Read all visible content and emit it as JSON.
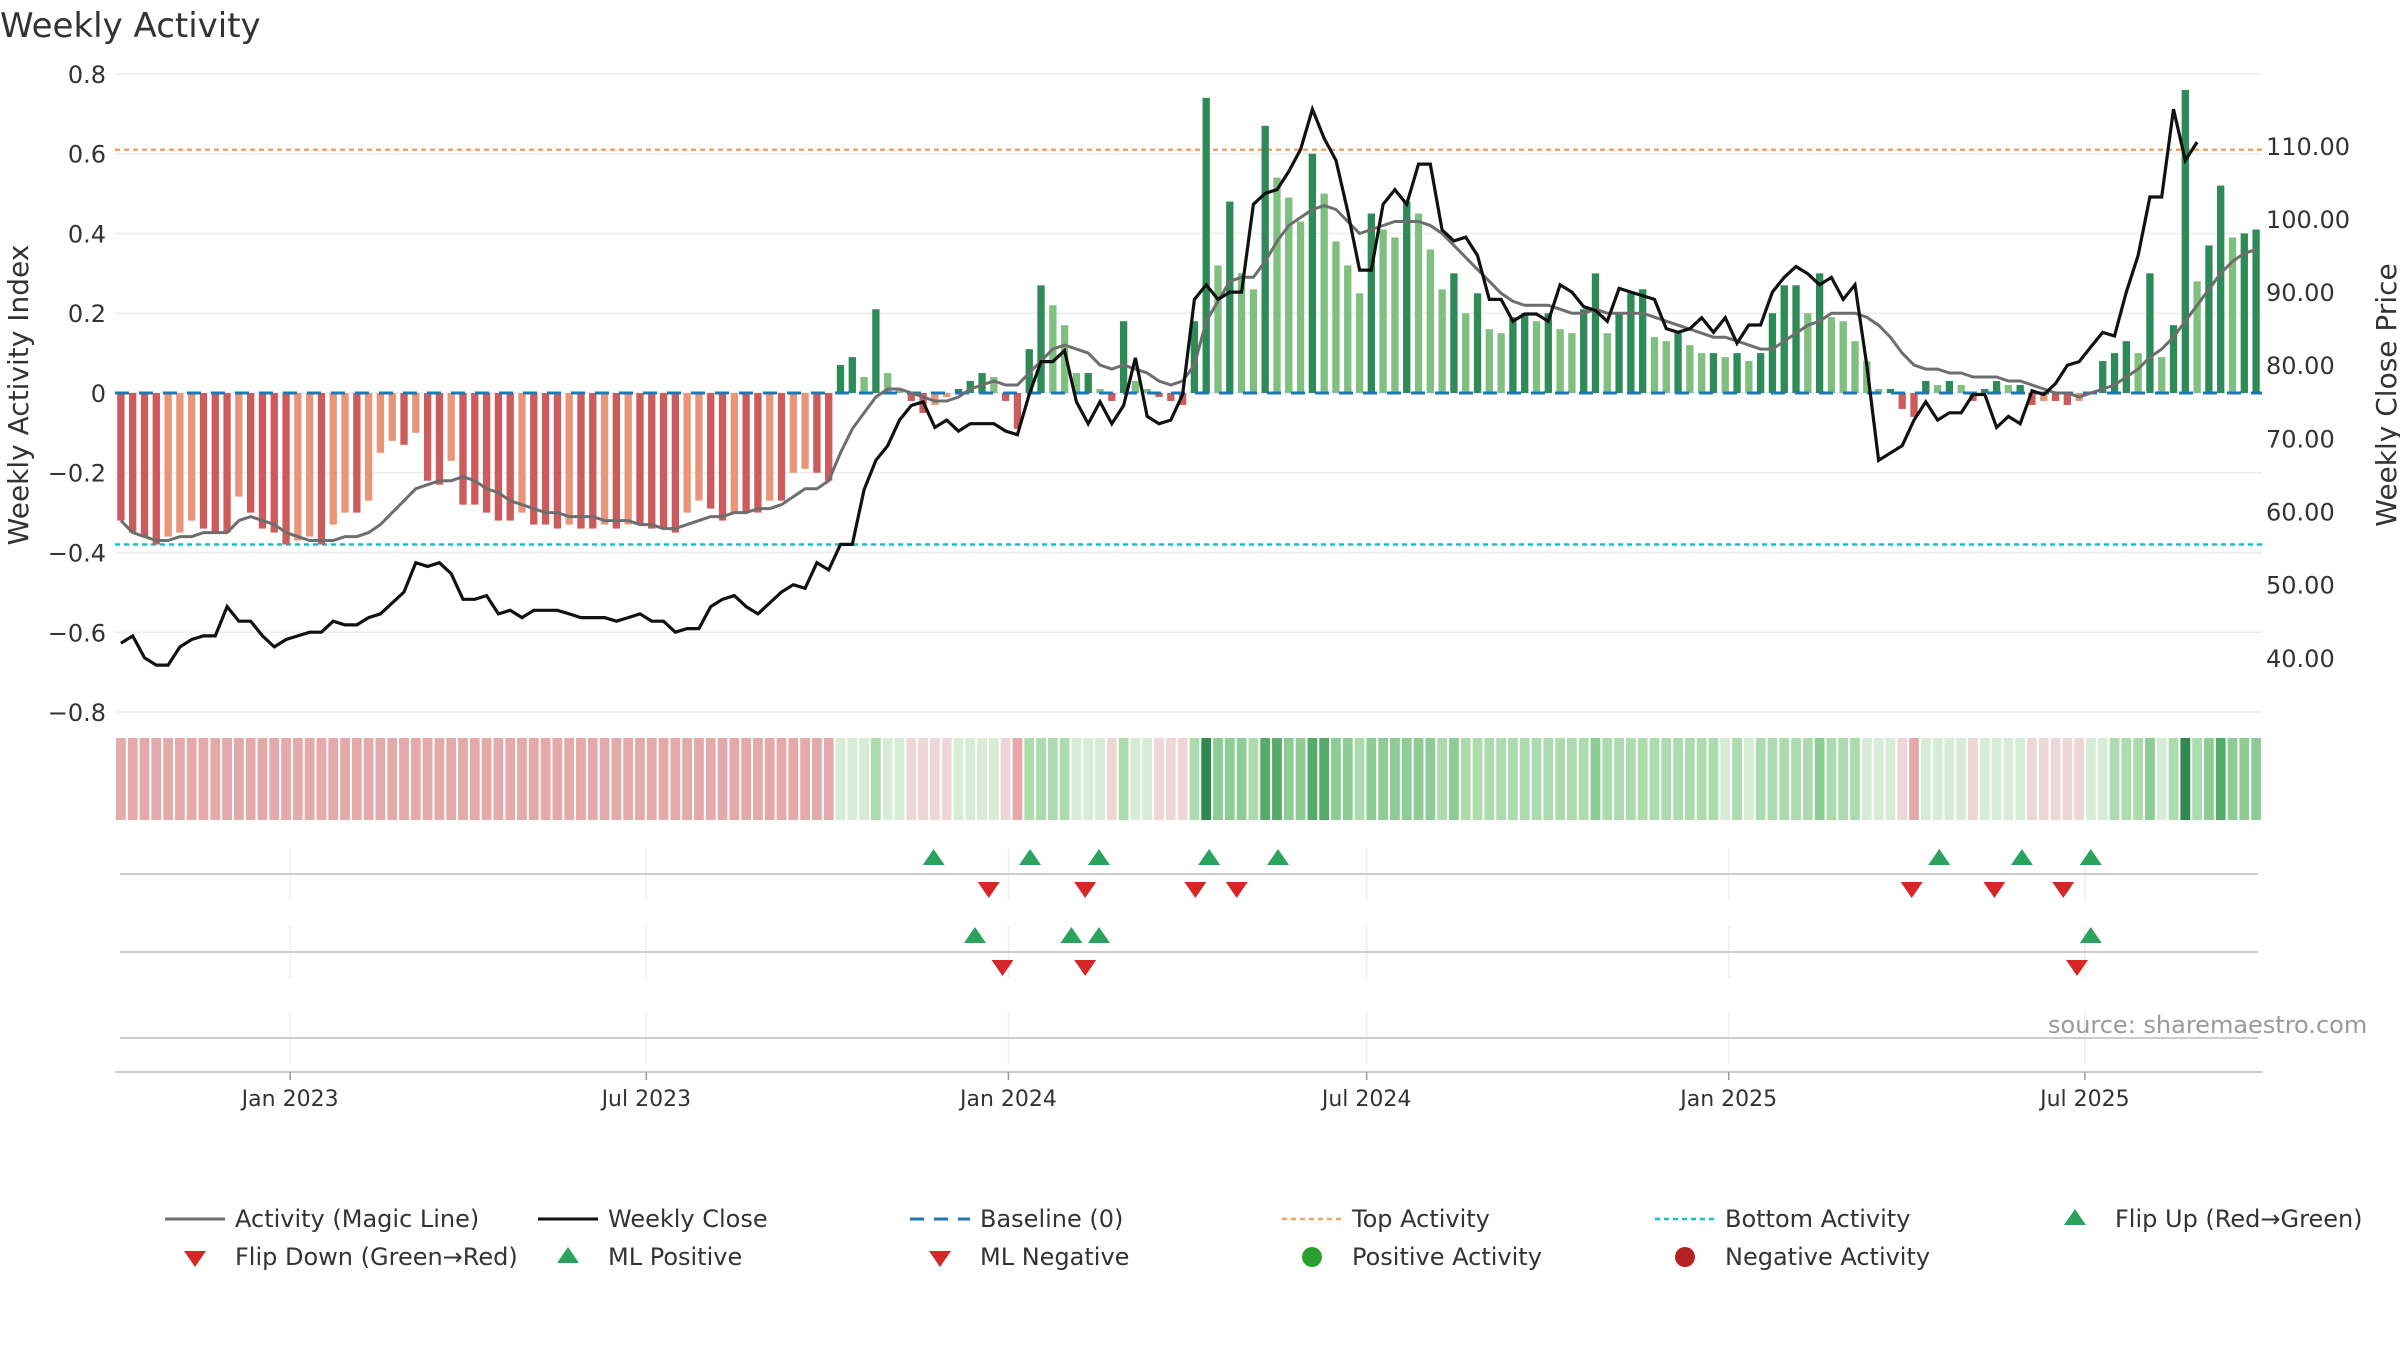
{
  "chart_data": {
    "type": "bar",
    "title": "Weekly Activity",
    "ylabel": "Weekly Activity Index",
    "y2label": "Weekly Close Price",
    "ylim": [
      -0.82,
      0.84
    ],
    "y2lim": [
      31.5,
      122.0
    ],
    "yticks": [
      -0.8,
      -0.6,
      -0.4,
      -0.2,
      0,
      0.2,
      0.4,
      0.6,
      0.8
    ],
    "ytick_labels": [
      "−0.8",
      "−0.6",
      "−0.4",
      "−0.2",
      "0",
      "0.2",
      "0.4",
      "0.6",
      "0.8"
    ],
    "y2ticks": [
      40,
      50,
      60,
      70,
      80,
      90,
      100,
      110
    ],
    "y2tick_labels": [
      "40.00",
      "50.00",
      "60.00",
      "70.00",
      "80.00",
      "90.00",
      "100.00",
      "110.00"
    ],
    "top_activity": 0.61,
    "bottom_activity": -0.38,
    "x_start": "2022-10-07",
    "x_end": "2025-09-26",
    "x_ticks": [
      {
        "date": "2023-01-01",
        "label": "Jan 2023"
      },
      {
        "date": "2023-07-01",
        "label": "Jul 2023"
      },
      {
        "date": "2024-01-01",
        "label": "Jan 2024"
      },
      {
        "date": "2024-07-01",
        "label": "Jul 2024"
      },
      {
        "date": "2025-01-01",
        "label": "Jan 2025"
      },
      {
        "date": "2025-07-01",
        "label": "Jul 2025"
      }
    ],
    "activity": [
      -0.32,
      -0.35,
      -0.36,
      -0.38,
      -0.36,
      -0.35,
      -0.32,
      -0.34,
      -0.35,
      -0.35,
      -0.26,
      -0.3,
      -0.34,
      -0.35,
      -0.38,
      -0.37,
      -0.36,
      -0.38,
      -0.33,
      -0.3,
      -0.3,
      -0.27,
      -0.15,
      -0.12,
      -0.13,
      -0.1,
      -0.22,
      -0.23,
      -0.17,
      -0.28,
      -0.28,
      -0.3,
      -0.32,
      -0.32,
      -0.3,
      -0.33,
      -0.33,
      -0.34,
      -0.33,
      -0.34,
      -0.34,
      -0.33,
      -0.34,
      -0.33,
      -0.33,
      -0.34,
      -0.34,
      -0.35,
      -0.3,
      -0.27,
      -0.29,
      -0.32,
      -0.3,
      -0.3,
      -0.3,
      -0.27,
      -0.27,
      -0.2,
      -0.19,
      -0.2,
      -0.22,
      0.07,
      0.09,
      0.04,
      0.21,
      0.05,
      0.01,
      -0.02,
      -0.05,
      -0.03,
      -0.01,
      0.01,
      0.03,
      0.05,
      0.04,
      -0.02,
      -0.09,
      0.11,
      0.27,
      0.22,
      0.17,
      0.05,
      0.05,
      0.01,
      -0.02,
      0.18,
      0.03,
      0.01,
      -0.01,
      -0.02,
      -0.03,
      0.18,
      0.74,
      0.32,
      0.48,
      0.3,
      0.26,
      0.67,
      0.54,
      0.49,
      0.43,
      0.6,
      0.5,
      0.38,
      0.32,
      0.25,
      0.45,
      0.41,
      0.39,
      0.48,
      0.45,
      0.36,
      0.26,
      0.3,
      0.2,
      0.25,
      0.16,
      0.15,
      0.19,
      0.2,
      0.18,
      0.2,
      0.16,
      0.15,
      0.21,
      0.3,
      0.15,
      0.2,
      0.25,
      0.26,
      0.14,
      0.13,
      0.15,
      0.12,
      0.1,
      0.1,
      0.09,
      0.1,
      0.08,
      0.1,
      0.2,
      0.27,
      0.27,
      0.2,
      0.3,
      0.19,
      0.18,
      0.13,
      0.08,
      0.01,
      0.01,
      -0.04,
      -0.06,
      0.03,
      0.02,
      0.03,
      0.02,
      -0.02,
      0.01,
      0.03,
      0.02,
      0.02,
      -0.03,
      -0.02,
      -0.02,
      -0.03,
      -0.02,
      0.0,
      0.08,
      0.1,
      0.13,
      0.1,
      0.3,
      0.09,
      0.17,
      0.76,
      0.28,
      0.37,
      0.52,
      0.39,
      0.4,
      0.41
    ],
    "activity_colors": [
      "#cc5c5c",
      "#e8957a",
      "#cc5c5c"
    ],
    "magic_line": [
      -0.32,
      -0.35,
      -0.36,
      -0.37,
      -0.37,
      -0.36,
      -0.36,
      -0.35,
      -0.35,
      -0.35,
      -0.32,
      -0.31,
      -0.32,
      -0.33,
      -0.35,
      -0.36,
      -0.37,
      -0.37,
      -0.37,
      -0.36,
      -0.36,
      -0.35,
      -0.33,
      -0.3,
      -0.27,
      -0.24,
      -0.23,
      -0.22,
      -0.22,
      -0.21,
      -0.22,
      -0.24,
      -0.25,
      -0.27,
      -0.28,
      -0.29,
      -0.3,
      -0.3,
      -0.31,
      -0.31,
      -0.31,
      -0.32,
      -0.32,
      -0.32,
      -0.33,
      -0.33,
      -0.34,
      -0.34,
      -0.33,
      -0.32,
      -0.31,
      -0.31,
      -0.3,
      -0.3,
      -0.29,
      -0.29,
      -0.28,
      -0.26,
      -0.24,
      -0.24,
      -0.22,
      -0.15,
      -0.09,
      -0.05,
      -0.01,
      0.01,
      0.01,
      0.0,
      -0.01,
      -0.02,
      -0.02,
      -0.01,
      0.01,
      0.02,
      0.03,
      0.02,
      0.02,
      0.05,
      0.08,
      0.11,
      0.12,
      0.11,
      0.1,
      0.07,
      0.06,
      0.07,
      0.06,
      0.05,
      0.03,
      0.02,
      0.03,
      0.07,
      0.18,
      0.23,
      0.28,
      0.29,
      0.29,
      0.33,
      0.38,
      0.42,
      0.44,
      0.46,
      0.47,
      0.46,
      0.43,
      0.4,
      0.41,
      0.42,
      0.43,
      0.43,
      0.43,
      0.42,
      0.4,
      0.37,
      0.34,
      0.31,
      0.28,
      0.25,
      0.23,
      0.22,
      0.22,
      0.22,
      0.21,
      0.2,
      0.2,
      0.21,
      0.2,
      0.2,
      0.2,
      0.2,
      0.19,
      0.18,
      0.17,
      0.16,
      0.15,
      0.14,
      0.14,
      0.13,
      0.12,
      0.11,
      0.11,
      0.13,
      0.15,
      0.17,
      0.18,
      0.2,
      0.2,
      0.2,
      0.19,
      0.17,
      0.14,
      0.1,
      0.07,
      0.06,
      0.06,
      0.05,
      0.05,
      0.04,
      0.04,
      0.04,
      0.03,
      0.03,
      0.02,
      0.01,
      0.0,
      0.0,
      -0.01,
      0.0,
      0.01,
      0.02,
      0.04,
      0.06,
      0.09,
      0.11,
      0.14,
      0.18,
      0.22,
      0.26,
      0.3,
      0.33,
      0.35,
      0.36
    ],
    "close": [
      42.0,
      43.0,
      40.0,
      39.0,
      39.0,
      41.5,
      42.5,
      43.0,
      43.0,
      47.0,
      45.0,
      45.0,
      43.0,
      41.5,
      42.5,
      43.0,
      43.5,
      43.5,
      45.0,
      44.5,
      44.5,
      45.5,
      46.0,
      47.5,
      49.0,
      53.0,
      52.5,
      53.0,
      51.5,
      48.0,
      48.0,
      48.5,
      46.0,
      46.5,
      45.5,
      46.5,
      46.5,
      46.5,
      46.0,
      45.5,
      45.5,
      45.5,
      45.0,
      45.5,
      46.0,
      45.0,
      45.0,
      43.5,
      44.0,
      44.0,
      47.0,
      48.0,
      48.5,
      47.0,
      46.0,
      47.5,
      49.0,
      50.0,
      49.5,
      53.0,
      52.0,
      55.5,
      55.5,
      63.0,
      67.0,
      69.0,
      72.5,
      74.5,
      75.0,
      71.5,
      72.5,
      71.0,
      72.0,
      72.0,
      72.0,
      71.0,
      70.5,
      76.0,
      80.5,
      80.5,
      82.0,
      75.0,
      72.0,
      75.0,
      72.0,
      74.5,
      81.0,
      73.0,
      72.0,
      72.5,
      76.0,
      89.0,
      91.0,
      89.0,
      90.0,
      90.0,
      102.0,
      103.5,
      104.0,
      106.5,
      109.5,
      115.0,
      111.0,
      108.0,
      101.0,
      93.0,
      93.0,
      102.0,
      104.0,
      102.0,
      107.5,
      107.5,
      98.5,
      97.0,
      97.5,
      95.0,
      89.0,
      89.0,
      86.0,
      87.0,
      87.0,
      86.0,
      91.0,
      90.0,
      88.0,
      87.5,
      86.0,
      90.5,
      90.0,
      89.5,
      89.0,
      85.0,
      84.5,
      85.0,
      86.5,
      84.5,
      86.5,
      83.0,
      85.5,
      85.5,
      90.0,
      92.0,
      93.5,
      92.5,
      91.0,
      92.0,
      89.0,
      91.0,
      80.0,
      67.0,
      68.0,
      69.0,
      72.5,
      75.0,
      72.5,
      73.5,
      73.5,
      76.0,
      76.0,
      71.5,
      73.0,
      72.0,
      76.5,
      76.0,
      77.5,
      80.0,
      80.5,
      82.5,
      84.5,
      84.0,
      90.0,
      95.0,
      103.0,
      103.0,
      115.0,
      108.0,
      110.5
    ],
    "heat_colors": [
      "#e4aaaa",
      "#ecd6d6",
      "#d6ecd6",
      "#acdcae",
      "#8dcc94",
      "#55ac6a",
      "#2e8a4e"
    ],
    "flip_up": [
      "2023-11-24",
      "2024-01-12",
      "2024-02-16",
      "2024-04-12",
      "2024-05-17",
      "2025-04-18",
      "2025-05-30",
      "2025-07-04"
    ],
    "flip_down": [
      "2023-12-22",
      "2024-02-09",
      "2024-04-05",
      "2024-04-26",
      "2025-04-04",
      "2025-05-16",
      "2025-06-20"
    ],
    "ml_positive": [
      "2023-12-15",
      "2024-02-02",
      "2024-02-16",
      "2025-07-04"
    ],
    "ml_negative": [
      "2023-12-29",
      "2024-02-09",
      "2025-06-27"
    ],
    "legend": [
      {
        "key": "magic",
        "label": "Activity (Magic Line)"
      },
      {
        "key": "close",
        "label": "Weekly Close"
      },
      {
        "key": "baseline",
        "label": "Baseline (0)"
      },
      {
        "key": "top",
        "label": "Top Activity"
      },
      {
        "key": "bottom",
        "label": "Bottom Activity"
      },
      {
        "key": "flipup",
        "label": "Flip Up (Red→Green)"
      },
      {
        "key": "flipdown",
        "label": "Flip Down (Green→Red)"
      },
      {
        "key": "mlpos",
        "label": "ML Positive"
      },
      {
        "key": "mlneg",
        "label": "ML Negative"
      },
      {
        "key": "posact",
        "label": "Positive Activity"
      },
      {
        "key": "negact",
        "label": "Negative Activity"
      }
    ],
    "colors": {
      "pos_dark": "#2e8a57",
      "pos_light": "#7fbf7f",
      "neg_dark": "#cc5c5c",
      "neg_light": "#e8957a",
      "magic": "#6e6e6e",
      "close": "#111111",
      "baseline": "#1f77b4",
      "top": "#f4a261",
      "bottom": "#17becf",
      "tri_up": "#2ca25f",
      "tri_down": "#d62728",
      "dot_pos": "#2ca02c",
      "dot_neg": "#b22222"
    }
  },
  "source": "source: sharemaestro.com"
}
